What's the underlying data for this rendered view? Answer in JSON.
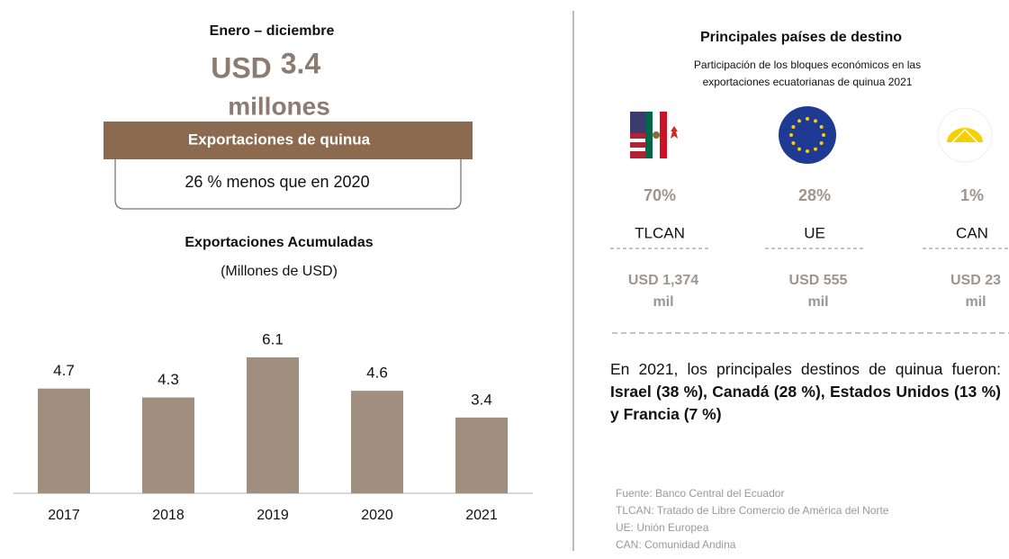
{
  "period": "Enero – diciembre",
  "headline": {
    "currency": "USD",
    "amount": "3.4",
    "unit": "millones"
  },
  "banner": "Exportaciones de quinua",
  "comparison": "26 % menos que en 2020",
  "chart_data": {
    "type": "bar",
    "title": "Exportaciones Acumuladas",
    "subtitle": "(Millones de USD)",
    "categories": [
      "2017",
      "2018",
      "2019",
      "2020",
      "2021"
    ],
    "values": [
      4.7,
      4.3,
      6.1,
      4.6,
      3.4
    ],
    "color": "#a08e7e"
  },
  "destinations": {
    "title": "Principales países de destino",
    "subtitle": [
      "Participación de los bloques económicos en las",
      "exportaciones ecuatorianas de quinua 2021"
    ],
    "blocs": [
      {
        "share": "70%",
        "name": "TLCAN",
        "amount": "USD 1,374",
        "unit": "mil"
      },
      {
        "share": "28%",
        "name": "UE",
        "amount": "USD 555",
        "unit": "mil"
      },
      {
        "share": "1%",
        "name": "CAN",
        "amount": "USD 23",
        "unit": "mil"
      }
    ]
  },
  "summary": [
    {
      "text": "En 2021, los principales destinos de quinua fueron: ",
      "bold": false
    },
    {
      "text": "Israel (38 %), Canadá (28 %), Estados Unidos (13 %) y Francia (7 %)",
      "bold": true
    }
  ],
  "notes": [
    "Fuente: Banco Central del Ecuador",
    "TLCAN: Tratado de Libre Comercio de América del Norte",
    "UE: Unión Europea",
    "CAN: Comunidad Andina"
  ]
}
